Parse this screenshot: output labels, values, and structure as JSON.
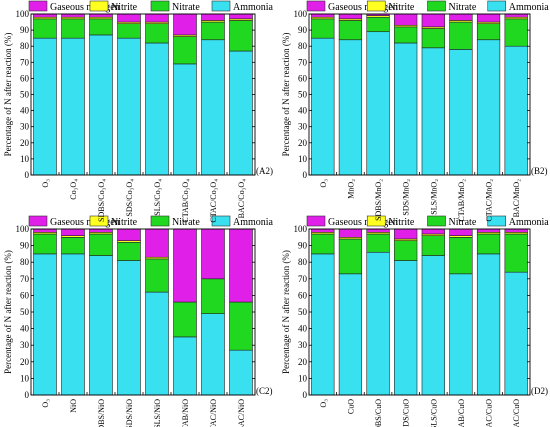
{
  "legend": {
    "gaseous": "Gaseous nitrogen",
    "nitrite": "Nitrite",
    "nitrate": "Nitrate",
    "ammonia": "Ammonia"
  },
  "colors": {
    "gaseous": "#e020e8",
    "nitrite": "#ffff20",
    "nitrate": "#20d820",
    "ammonia": "#38e0f0"
  },
  "chart_data": [
    {
      "type": "bar",
      "stacked": true,
      "panel_label": "(A2)",
      "ylabel": "Percentage of N after reaction (%)",
      "ylim": [
        0,
        100
      ],
      "yticks": [
        0,
        10,
        20,
        30,
        40,
        50,
        60,
        70,
        80,
        90,
        100
      ],
      "categories": [
        "O₃",
        "Co₃O₄",
        "SDBS/Co₃O₄",
        "SDS/Co₃O₄",
        "SLS/Co₃O₄",
        "CTAB/Co₃O₄",
        "CTAC/Co₃O₄",
        "BAC/Co₃O₄"
      ],
      "series": [
        {
          "name": "Ammonia",
          "values": [
            85,
            85,
            87,
            85,
            82,
            69,
            84,
            77
          ]
        },
        {
          "name": "Nitrate",
          "values": [
            12,
            12,
            10,
            9,
            12,
            17,
            11,
            19
          ]
        },
        {
          "name": "Nitrite",
          "values": [
            1,
            1,
            1,
            1,
            1,
            1,
            1,
            1
          ]
        },
        {
          "name": "Gaseous nitrogen",
          "values": [
            2,
            2,
            2,
            5,
            5,
            13,
            4,
            3
          ]
        }
      ]
    },
    {
      "type": "bar",
      "stacked": true,
      "panel_label": "(B2)",
      "ylabel": "Percentage of N after reaction (%)",
      "ylim": [
        0,
        100
      ],
      "yticks": [
        0,
        10,
        20,
        30,
        40,
        50,
        60,
        70,
        80,
        90,
        100
      ],
      "categories": [
        "O₃",
        "MnO₂",
        "SDBS/MnO₂",
        "SDS/MnO₂",
        "SLS/MnO₂",
        "CTAB/MnO₂",
        "CTAC/MnO₂",
        "BAC/MnO₂"
      ],
      "series": [
        {
          "name": "Ammonia",
          "values": [
            85,
            84,
            89,
            82,
            79,
            78,
            84,
            80
          ]
        },
        {
          "name": "Nitrate",
          "values": [
            12,
            12,
            9,
            10,
            12,
            17,
            10,
            17
          ]
        },
        {
          "name": "Nitrite",
          "values": [
            1,
            1,
            1,
            1,
            1,
            1,
            1,
            1
          ]
        },
        {
          "name": "Gaseous nitrogen",
          "values": [
            2,
            3,
            1,
            7,
            8,
            4,
            5,
            2
          ]
        }
      ]
    },
    {
      "type": "bar",
      "stacked": true,
      "panel_label": "(C2)",
      "ylabel": "Percentage of N after reaction (%)",
      "ylim": [
        0,
        100
      ],
      "yticks": [
        0,
        10,
        20,
        30,
        40,
        50,
        60,
        70,
        80,
        90,
        100
      ],
      "categories": [
        "O₃",
        "NiO",
        "SDBS/NiO",
        "SDS/NiO",
        "SLS/NiO",
        "CTAB/NiO",
        "CTAC/NiO",
        "BAC/NiO"
      ],
      "series": [
        {
          "name": "Ammonia",
          "values": [
            85,
            85,
            84,
            81,
            62,
            35,
            49,
            27
          ]
        },
        {
          "name": "Nitrate",
          "values": [
            12,
            10,
            13,
            11,
            20,
            21,
            21,
            29
          ]
        },
        {
          "name": "Nitrite",
          "values": [
            1,
            1,
            1,
            1,
            1,
            0,
            0,
            0
          ]
        },
        {
          "name": "Gaseous nitrogen",
          "values": [
            2,
            4,
            2,
            7,
            17,
            44,
            30,
            44
          ]
        }
      ]
    },
    {
      "type": "bar",
      "stacked": true,
      "panel_label": "(D2)",
      "ylabel": "Percentage of N after reaction (%)",
      "ylim": [
        0,
        100
      ],
      "yticks": [
        0,
        10,
        20,
        30,
        40,
        50,
        60,
        70,
        80,
        90,
        100
      ],
      "categories": [
        "O₃",
        "CuO",
        "SDBS/CuO",
        "SDS/CuO",
        "SLS/CuO",
        "CTAB/CuO",
        "CTAC/CuO",
        "BAC/CuO"
      ],
      "series": [
        {
          "name": "Ammonia",
          "values": [
            85,
            73,
            86,
            81,
            84,
            73,
            85,
            74
          ]
        },
        {
          "name": "Nitrate",
          "values": [
            12,
            21,
            11,
            12,
            12,
            22,
            12,
            23
          ]
        },
        {
          "name": "Nitrite",
          "values": [
            1,
            1,
            1,
            1,
            1,
            1,
            1,
            1
          ]
        },
        {
          "name": "Gaseous nitrogen",
          "values": [
            2,
            5,
            2,
            6,
            3,
            4,
            2,
            2
          ]
        }
      ]
    }
  ]
}
